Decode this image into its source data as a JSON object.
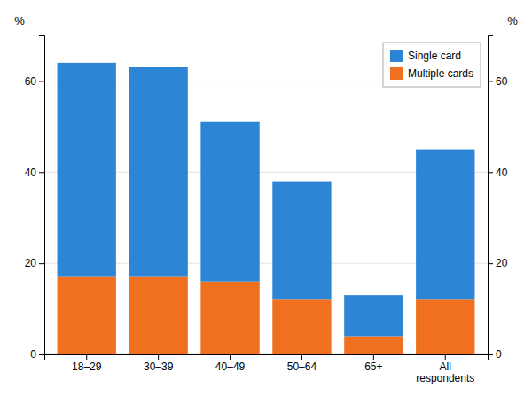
{
  "chart_data": {
    "type": "bar",
    "stacked": true,
    "categories": [
      "18–29",
      "30–39",
      "40–49",
      "50–64",
      "65+",
      "All\nrespondents"
    ],
    "series": [
      {
        "name": "Multiple cards",
        "color": "#f07020",
        "values": [
          17,
          17,
          16,
          12,
          4,
          12
        ]
      },
      {
        "name": "Single card",
        "color": "#2c85d5",
        "values": [
          47,
          46,
          35,
          26,
          9,
          33
        ]
      }
    ],
    "ylim": [
      0,
      70
    ],
    "yticks": [
      0,
      20,
      40,
      60
    ],
    "y2lim": [
      0,
      70
    ],
    "y2ticks": [
      0,
      20,
      40,
      60
    ],
    "ylabel": "%",
    "y2label": "%",
    "grid": true,
    "legend": "upper right"
  }
}
